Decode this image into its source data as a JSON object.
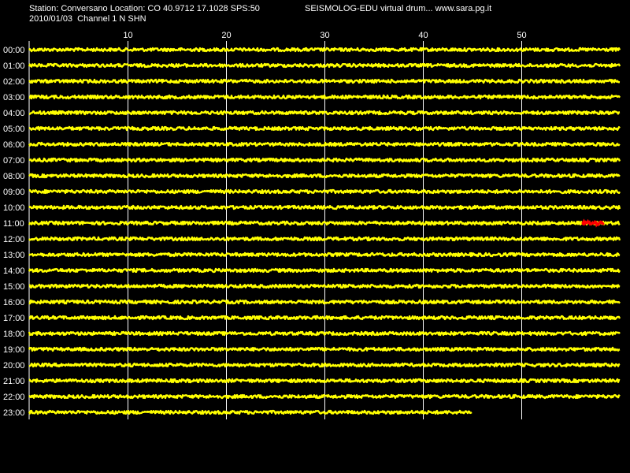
{
  "header": {
    "station_line": "Station: Conversano Location: CO 40.9712 17.1028 SPS:50",
    "app_title": "SEISMOLOG-EDU virtual drum... www.sara.pg.it",
    "date_line": "2010/01/03  Channel 1 N SHN"
  },
  "chart_data": {
    "type": "line",
    "title": "",
    "x_axis": {
      "label": "",
      "min": 0,
      "max": 60,
      "ticks": [
        10,
        20,
        30,
        40,
        50
      ],
      "tick_labels": [
        "10",
        "20",
        "30",
        "40",
        "50"
      ],
      "grid": true
    },
    "y_axis": {
      "label": "",
      "tick_labels": [
        "00:00",
        "01:00",
        "02:00",
        "03:00",
        "04:00",
        "05:00",
        "06:00",
        "07:00",
        "08:00",
        "09:00",
        "10:00",
        "11:00",
        "12:00",
        "13:00",
        "14:00",
        "15:00",
        "16:00",
        "17:00",
        "18:00",
        "19:00",
        "20:00",
        "21:00",
        "22:00",
        "23:00"
      ]
    },
    "series": [
      {
        "hour": "00:00",
        "end_minute": 60,
        "color": "#ffff00"
      },
      {
        "hour": "01:00",
        "end_minute": 60,
        "color": "#ffff00"
      },
      {
        "hour": "02:00",
        "end_minute": 60,
        "color": "#ffff00"
      },
      {
        "hour": "03:00",
        "end_minute": 60,
        "color": "#ffff00"
      },
      {
        "hour": "04:00",
        "end_minute": 60,
        "color": "#ffff00"
      },
      {
        "hour": "05:00",
        "end_minute": 60,
        "color": "#ffff00"
      },
      {
        "hour": "06:00",
        "end_minute": 60,
        "color": "#ffff00"
      },
      {
        "hour": "07:00",
        "end_minute": 60,
        "color": "#ffff00"
      },
      {
        "hour": "08:00",
        "end_minute": 60,
        "color": "#ffff00"
      },
      {
        "hour": "09:00",
        "end_minute": 60,
        "color": "#ffff00"
      },
      {
        "hour": "10:00",
        "end_minute": 60,
        "color": "#ffff00"
      },
      {
        "hour": "11:00",
        "end_minute": 60,
        "color": "#ffff00",
        "event": {
          "start_minute": 56.2,
          "end_minute": 58.4,
          "color": "#ff0000"
        }
      },
      {
        "hour": "12:00",
        "end_minute": 60,
        "color": "#ffff00"
      },
      {
        "hour": "13:00",
        "end_minute": 60,
        "color": "#ffff00"
      },
      {
        "hour": "14:00",
        "end_minute": 60,
        "color": "#ffff00"
      },
      {
        "hour": "15:00",
        "end_minute": 60,
        "color": "#ffff00"
      },
      {
        "hour": "16:00",
        "end_minute": 60,
        "color": "#ffff00"
      },
      {
        "hour": "17:00",
        "end_minute": 60,
        "color": "#ffff00"
      },
      {
        "hour": "18:00",
        "end_minute": 60,
        "color": "#ffff00"
      },
      {
        "hour": "19:00",
        "end_minute": 60,
        "color": "#ffff00"
      },
      {
        "hour": "20:00",
        "end_minute": 60,
        "color": "#ffff00"
      },
      {
        "hour": "21:00",
        "end_minute": 60,
        "color": "#ffff00"
      },
      {
        "hour": "22:00",
        "end_minute": 60,
        "color": "#ffff00"
      },
      {
        "hour": "23:00",
        "end_minute": 45,
        "color": "#ffff00"
      }
    ],
    "colors": {
      "background": "#000000",
      "trace": "#ffff00",
      "event": "#ff0000",
      "grid": "#ffffff",
      "text": "#ffffff"
    },
    "legend": "none"
  }
}
